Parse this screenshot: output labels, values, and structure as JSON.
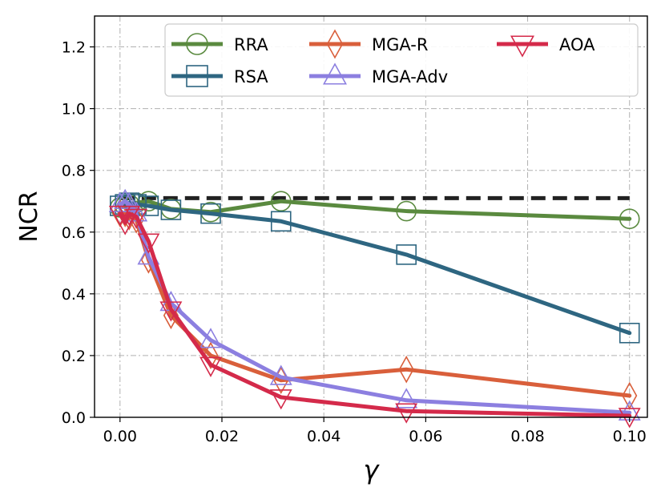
{
  "chart_data": {
    "type": "line",
    "xlabel": "γ",
    "ylabel": "NCR",
    "xlim": [
      -0.005,
      0.1035
    ],
    "ylim": [
      0.0,
      1.3
    ],
    "xticks": [
      0.0,
      0.02,
      0.04,
      0.06,
      0.08,
      0.1
    ],
    "xtick_labels": [
      "0.00",
      "0.02",
      "0.04",
      "0.06",
      "0.08",
      "0.10"
    ],
    "yticks": [
      0.0,
      0.2,
      0.4,
      0.6,
      0.8,
      1.0,
      1.2
    ],
    "ytick_labels": [
      "0.0",
      "0.2",
      "0.4",
      "0.6",
      "0.8",
      "1.0",
      "1.2"
    ],
    "grid": true,
    "legend_position": "top-right",
    "legend_columns": 3,
    "reference_line": {
      "y": 0.71,
      "x_range": [
        0.0,
        0.1
      ],
      "style": "dashed",
      "color": "#222222"
    },
    "series": [
      {
        "name": "RRA",
        "marker": "circle",
        "color": "#5a8a3f",
        "x": [
          0.0,
          0.001,
          0.0018,
          0.0032,
          0.0056,
          0.01,
          0.0178,
          0.0316,
          0.0562,
          0.1
        ],
        "y": [
          0.68,
          0.685,
          0.69,
          0.695,
          0.7,
          0.675,
          0.665,
          0.7,
          0.668,
          0.643
        ]
      },
      {
        "name": "RSA",
        "marker": "square",
        "color": "#2e6681",
        "x": [
          0.0,
          0.001,
          0.0018,
          0.0032,
          0.0056,
          0.01,
          0.0178,
          0.0316,
          0.0562,
          0.1
        ],
        "y": [
          0.685,
          0.69,
          0.695,
          0.69,
          0.685,
          0.672,
          0.66,
          0.635,
          0.527,
          0.273
        ]
      },
      {
        "name": "MGA-R",
        "marker": "diamond",
        "color": "#d95f3b",
        "x": [
          0.0,
          0.001,
          0.0018,
          0.0032,
          0.0056,
          0.01,
          0.0178,
          0.0316,
          0.0562,
          0.1
        ],
        "y": [
          0.66,
          0.66,
          0.65,
          0.64,
          0.51,
          0.33,
          0.2,
          0.12,
          0.155,
          0.07
        ]
      },
      {
        "name": "MGA-Adv",
        "marker": "triangle-up",
        "color": "#8c7fe0",
        "x": [
          0.0,
          0.001,
          0.0018,
          0.0032,
          0.0056,
          0.01,
          0.0178,
          0.0316,
          0.0562,
          0.1
        ],
        "y": [
          0.69,
          0.7,
          0.69,
          0.66,
          0.52,
          0.37,
          0.25,
          0.13,
          0.055,
          0.015
        ]
      },
      {
        "name": "AOA",
        "marker": "triangle-down",
        "color": "#d42a4a",
        "x": [
          0.0,
          0.001,
          0.0018,
          0.0032,
          0.0056,
          0.01,
          0.0178,
          0.0316,
          0.0562,
          0.1
        ],
        "y": [
          0.66,
          0.63,
          0.66,
          0.65,
          0.57,
          0.35,
          0.17,
          0.065,
          0.02,
          0.005
        ]
      }
    ]
  }
}
